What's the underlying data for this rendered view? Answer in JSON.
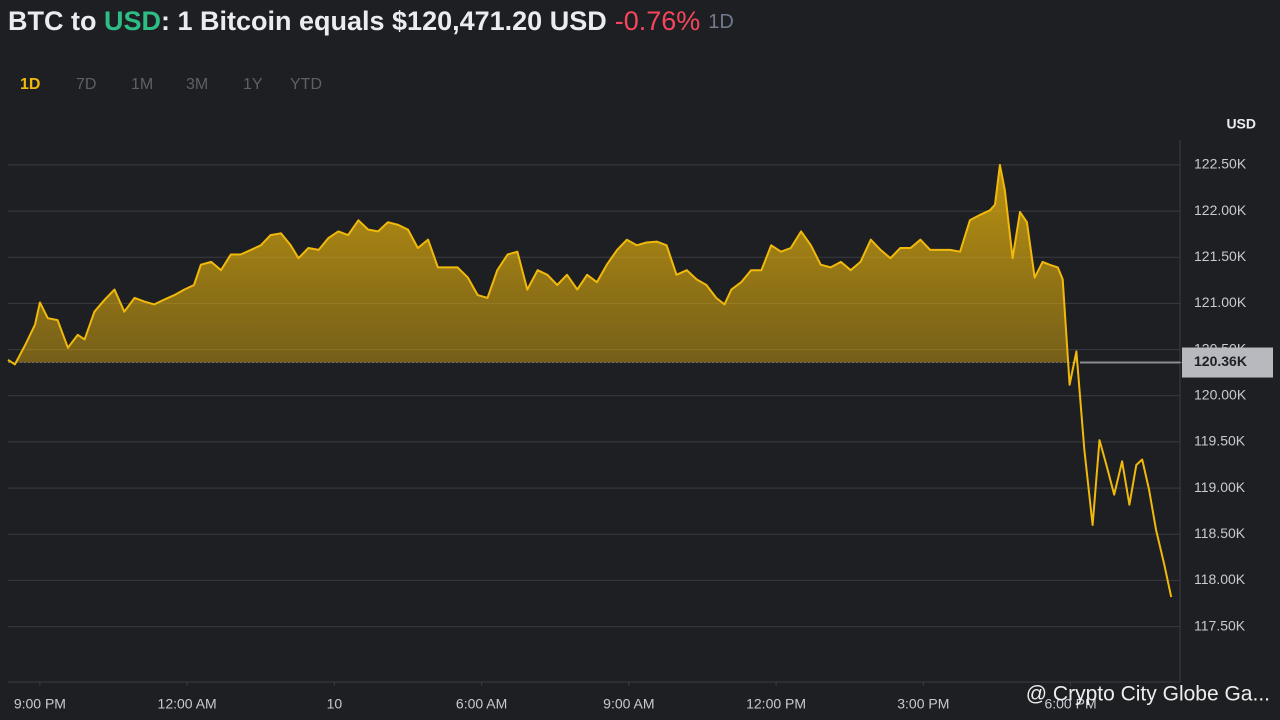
{
  "chart_data": {
    "type": "line",
    "title_parts": [
      "BTC to ",
      "USD",
      ": 1 Bitcoin equals $120,471.20 USD",
      "-0.76%",
      "1D"
    ],
    "ranges": [
      "1D",
      "7D",
      "1M",
      "3M",
      "1Y",
      "YTD"
    ],
    "active_range": "1D",
    "y_unit": "USD",
    "watermark": "@ Crypto City Globe Ga...",
    "current_price": {
      "value": 120360,
      "label": "120.36K"
    },
    "xlim": [
      20.35,
      44.23
    ],
    "xticks": [
      {
        "value": 21,
        "label": "9:00 PM"
      },
      {
        "value": 24,
        "label": "12:00 AM"
      },
      {
        "value": 27,
        "label": "10"
      },
      {
        "value": 30,
        "label": "6:00 AM"
      },
      {
        "value": 33,
        "label": "9:00 AM"
      },
      {
        "value": 36,
        "label": "12:00 PM"
      },
      {
        "value": 39,
        "label": "3:00 PM"
      },
      {
        "value": 42,
        "label": "6:00 PM"
      }
    ],
    "ylim": [
      116900,
      122770
    ],
    "yticks": [
      {
        "value": 117500,
        "label": "117.50K"
      },
      {
        "value": 118000,
        "label": "118.00K"
      },
      {
        "value": 118500,
        "label": "118.50K"
      },
      {
        "value": 119000,
        "label": "119.00K"
      },
      {
        "value": 119500,
        "label": "119.50K"
      },
      {
        "value": 120000,
        "label": "120.00K"
      },
      {
        "value": 120500,
        "label": "120.50K"
      },
      {
        "value": 121000,
        "label": "121.00K"
      },
      {
        "value": 121500,
        "label": "121.50K"
      },
      {
        "value": 122000,
        "label": "122.00K"
      },
      {
        "value": 122500,
        "label": "122.50K"
      }
    ],
    "grid": true,
    "x": [
      20.35,
      20.49,
      20.7,
      20.9,
      21.0,
      21.16,
      21.36,
      21.57,
      21.77,
      21.91,
      22.11,
      22.32,
      22.52,
      22.72,
      22.93,
      23.13,
      23.33,
      23.53,
      23.74,
      23.94,
      24.14,
      24.28,
      24.49,
      24.69,
      24.89,
      25.09,
      25.3,
      25.5,
      25.7,
      25.91,
      26.11,
      26.27,
      26.47,
      26.68,
      26.88,
      27.08,
      27.28,
      27.49,
      27.69,
      27.89,
      28.09,
      28.3,
      28.5,
      28.7,
      28.91,
      29.11,
      29.31,
      29.51,
      29.72,
      29.92,
      30.12,
      30.32,
      30.53,
      30.73,
      30.93,
      31.14,
      31.34,
      31.54,
      31.74,
      31.95,
      32.15,
      32.35,
      32.55,
      32.76,
      32.96,
      33.16,
      33.36,
      33.57,
      33.77,
      33.97,
      34.18,
      34.38,
      34.58,
      34.78,
      34.95,
      35.09,
      35.29,
      35.49,
      35.7,
      35.9,
      36.1,
      36.3,
      36.51,
      36.71,
      36.91,
      37.11,
      37.32,
      37.52,
      37.72,
      37.93,
      38.13,
      38.33,
      38.53,
      38.74,
      38.94,
      39.14,
      39.34,
      39.55,
      39.75,
      39.95,
      40.16,
      40.36,
      40.46,
      40.56,
      40.66,
      40.82,
      40.97,
      41.11,
      41.27,
      41.43,
      41.57,
      41.74,
      41.84,
      41.98,
      42.12,
      42.28,
      42.45,
      42.59,
      42.73,
      42.89,
      43.05,
      43.2,
      43.34,
      43.46,
      43.6,
      43.74,
      43.91,
      44.05
    ],
    "series": [
      {
        "name": "BTC",
        "color": "#f0b90b",
        "values": [
          120390,
          120340,
          120550,
          120770,
          121010,
          120840,
          120820,
          120520,
          120660,
          120610,
          120910,
          121040,
          121150,
          120910,
          121060,
          121020,
          120990,
          121040,
          121090,
          121150,
          121200,
          121420,
          121450,
          121360,
          121530,
          121530,
          121580,
          121630,
          121740,
          121760,
          121630,
          121490,
          121600,
          121580,
          121710,
          121780,
          121740,
          121900,
          121800,
          121780,
          121880,
          121850,
          121800,
          121600,
          121690,
          121390,
          121390,
          121390,
          121280,
          121090,
          121060,
          121360,
          121530,
          121560,
          121150,
          121360,
          121310,
          121200,
          121310,
          121150,
          121310,
          121230,
          121420,
          121580,
          121690,
          121630,
          121660,
          121670,
          121630,
          121310,
          121360,
          121260,
          121200,
          121060,
          120990,
          121150,
          121230,
          121360,
          121360,
          121630,
          121560,
          121600,
          121780,
          121630,
          121420,
          121390,
          121450,
          121360,
          121450,
          121690,
          121580,
          121490,
          121600,
          121600,
          121690,
          121580,
          121580,
          121580,
          121560,
          121900,
          121960,
          122010,
          122070,
          122500,
          122230,
          121490,
          121990,
          121880,
          121280,
          121450,
          121420,
          121390,
          121260,
          120120,
          120480,
          119420,
          118600,
          119520,
          119250,
          118930,
          119290,
          118820,
          119250,
          119310,
          118980,
          118550,
          118170,
          117820
        ]
      }
    ]
  }
}
